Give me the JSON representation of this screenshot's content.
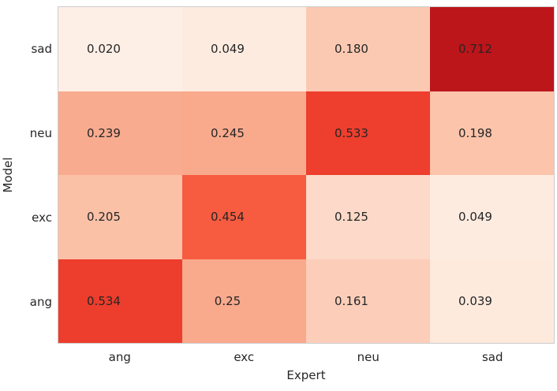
{
  "figure": {
    "background_color": "#ffffff",
    "plot_border_color": "#cccccc",
    "text_color": "#262626"
  },
  "chart_data": {
    "type": "heatmap",
    "title": "",
    "xlabel": "Expert",
    "ylabel": "Model",
    "x_categories": [
      "ang",
      "exc",
      "neu",
      "sad"
    ],
    "y_categories": [
      "sad",
      "neu",
      "exc",
      "ang"
    ],
    "colormap": "Reds",
    "legend": "none",
    "grid": false,
    "rows": [
      {
        "label": "sad",
        "cells": [
          {
            "value": "0.020",
            "color": "#fdefe6"
          },
          {
            "value": "0.049",
            "color": "#fdebe0"
          },
          {
            "value": "0.180",
            "color": "#fbc9b1"
          },
          {
            "value": "0.712",
            "color": "#bc151a"
          }
        ]
      },
      {
        "label": "neu",
        "cells": [
          {
            "value": "0.239",
            "color": "#f9ab8f"
          },
          {
            "value": "0.245",
            "color": "#f9aa8d"
          },
          {
            "value": "0.533",
            "color": "#ee3e2d"
          },
          {
            "value": "0.198",
            "color": "#fbc4ab"
          }
        ]
      },
      {
        "label": "exc",
        "cells": [
          {
            "value": "0.205",
            "color": "#fbc1a7"
          },
          {
            "value": "0.454",
            "color": "#f75b40"
          },
          {
            "value": "0.125",
            "color": "#fcd9c8"
          },
          {
            "value": "0.049",
            "color": "#fdebe0"
          }
        ]
      },
      {
        "label": "ang",
        "cells": [
          {
            "value": "0.534",
            "color": "#ed3d2c"
          },
          {
            "value": "0.25",
            "color": "#f9a98c"
          },
          {
            "value": "0.161",
            "color": "#fcceba"
          },
          {
            "value": "0.039",
            "color": "#fdeadd"
          }
        ]
      }
    ]
  }
}
